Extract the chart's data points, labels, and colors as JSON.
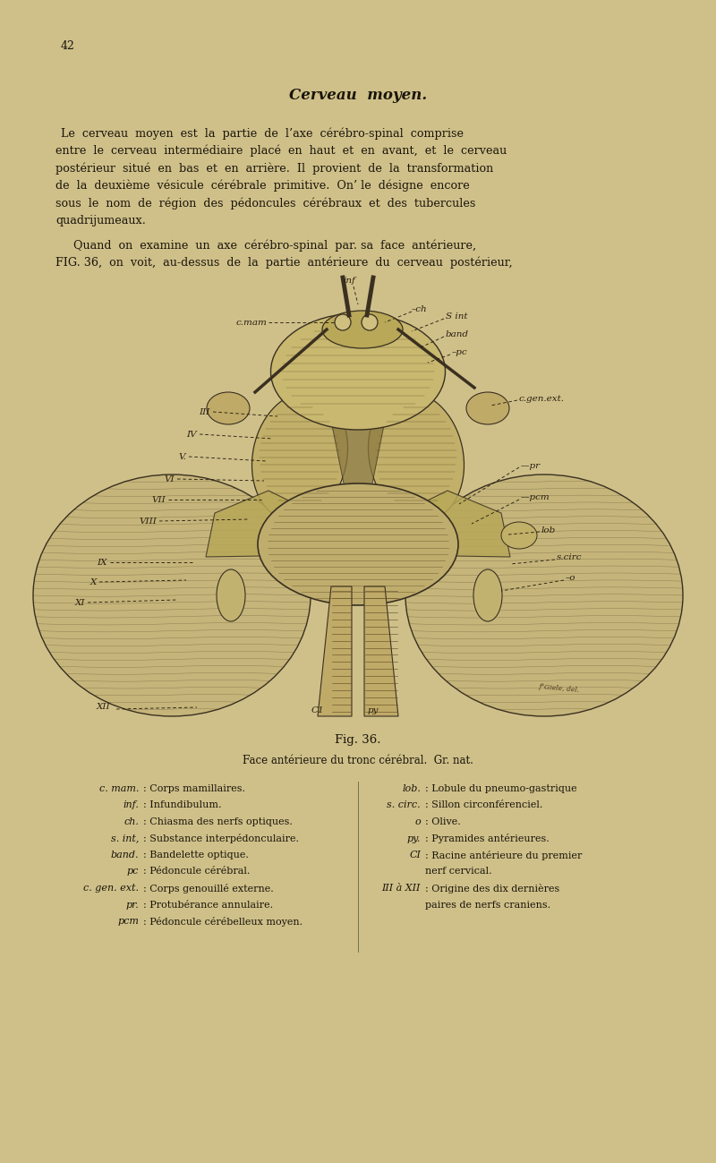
{
  "bg_color": "#cfc08a",
  "page_number": "42",
  "title": "Cerveau  moyen.",
  "text_color": "#1a1509",
  "font_size_title": 12,
  "font_size_body": 9.2,
  "font_size_legend": 8.0,
  "font_size_caption": 8.5,
  "fig_caption": "Fig. 36.",
  "fig_subcaption": "Face antérieure du tronc cérébral.  Gr. nat.",
  "legend_left": [
    [
      "c. mam.",
      ": Corps mamillaires."
    ],
    [
      "inf.",
      ": Infundibulum."
    ],
    [
      "ch.",
      ": Chiasma des nerfs optiques."
    ],
    [
      "s. int,",
      ": Substance interpédonculaire."
    ],
    [
      "band.",
      ": Bandelette optique."
    ],
    [
      "pc",
      ": Pédoncule cérébral."
    ],
    [
      "c. gen. ext.",
      ": Corps genouillé externe."
    ],
    [
      "pr.",
      ": Protubérance annulaire."
    ],
    [
      "pcm",
      ": Pédoncule cérébelleux moyen."
    ]
  ],
  "legend_right": [
    [
      "lob.",
      ": Lobule du pneumo-gastrique"
    ],
    [
      "s. circ.",
      ": Sillon circonférenciel."
    ],
    [
      "o",
      ": Olive."
    ],
    [
      "py.",
      ": Pyramides antérieures."
    ],
    [
      "CI",
      ": Racine antérieure du premier\nnerf cervical."
    ],
    [
      "III à XII",
      ": Origine des dix dernières\npaires de nerfs craniens."
    ]
  ]
}
